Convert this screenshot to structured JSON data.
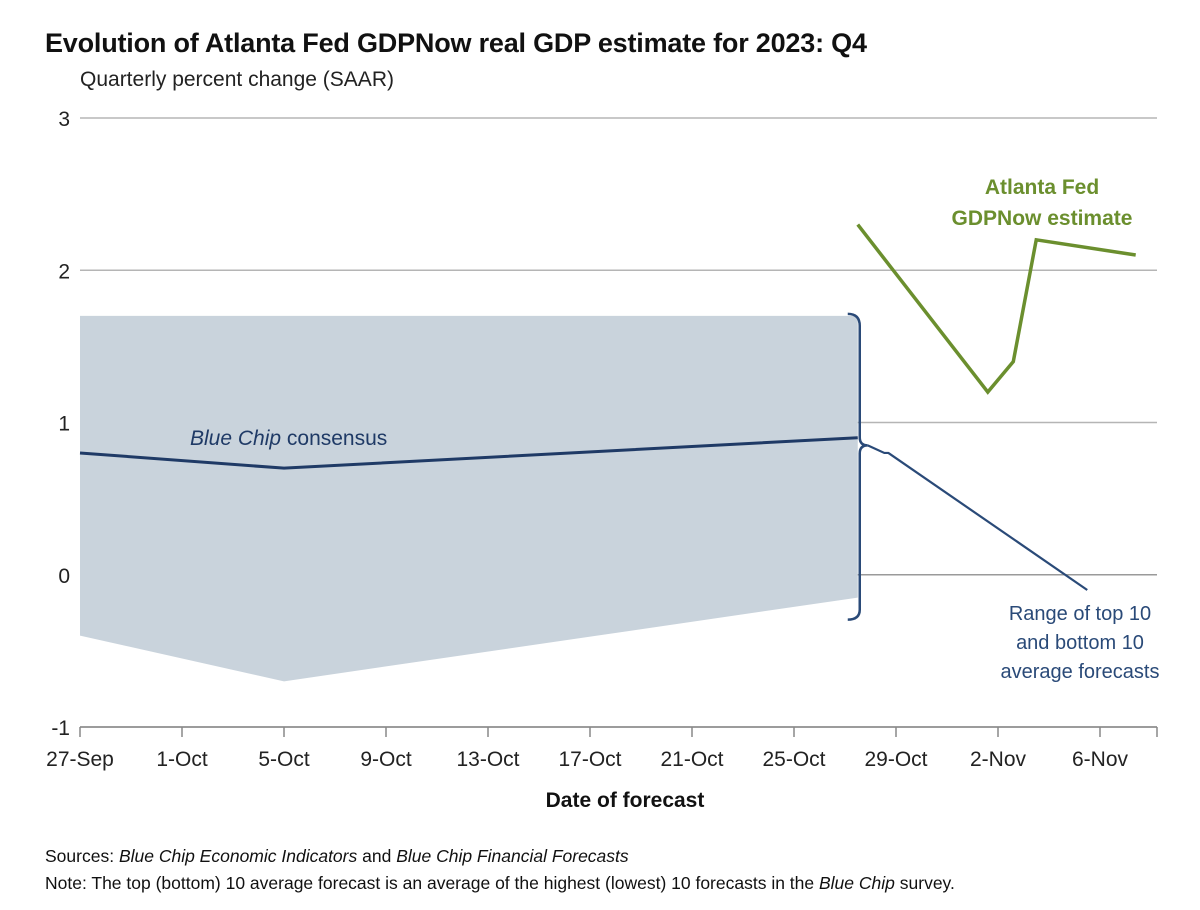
{
  "chart_data": {
    "type": "line",
    "title": "Evolution of Atlanta Fed GDPNow real GDP estimate for 2023: Q4",
    "subtitle": "Quarterly percent change (SAAR)",
    "xlabel": "Date of forecast",
    "ylabel": "",
    "ylim": [
      -1,
      3
    ],
    "yticks": [
      3,
      2,
      1,
      0,
      -1
    ],
    "x_day_range": [
      0,
      42
    ],
    "xticks": [
      {
        "label": "27-Sep",
        "day": 0
      },
      {
        "label": "1-Oct",
        "day": 4
      },
      {
        "label": "5-Oct",
        "day": 8
      },
      {
        "label": "9-Oct",
        "day": 12
      },
      {
        "label": "13-Oct",
        "day": 16
      },
      {
        "label": "17-Oct",
        "day": 20
      },
      {
        "label": "21-Oct",
        "day": 24
      },
      {
        "label": "25-Oct",
        "day": 28
      },
      {
        "label": "29-Oct",
        "day": 32
      },
      {
        "label": "2-Nov",
        "day": 36
      },
      {
        "label": "6-Nov",
        "day": 40
      }
    ],
    "grid": true,
    "series": [
      {
        "name": "Atlanta Fed GDPNow estimate",
        "color": "#6b8f2e",
        "points": [
          {
            "day": 30.5,
            "value": 2.3
          },
          {
            "day": 35.6,
            "value": 1.2
          },
          {
            "day": 36.6,
            "value": 1.4
          },
          {
            "day": 37.5,
            "value": 2.2
          },
          {
            "day": 41.4,
            "value": 2.1
          }
        ]
      },
      {
        "name": "Blue Chip consensus",
        "color": "#1f3a66",
        "points": [
          {
            "day": 0,
            "value": 0.8
          },
          {
            "day": 8,
            "value": 0.7
          },
          {
            "day": 30.5,
            "value": 0.9
          }
        ]
      },
      {
        "name": "Range of top 10 and bottom 10 average forecasts",
        "type": "area",
        "color": "#c9d3dc",
        "upper": [
          {
            "day": 0,
            "value": 1.7
          },
          {
            "day": 30.5,
            "value": 1.7
          }
        ],
        "lower": [
          {
            "day": 0,
            "value": -0.4
          },
          {
            "day": 8,
            "value": -0.7
          },
          {
            "day": 30.5,
            "value": -0.15
          }
        ]
      },
      {
        "name": "range-callout-line",
        "color": "#2a4a78",
        "points": [
          {
            "day": 31.7,
            "value": 0.8
          },
          {
            "day": 39.5,
            "value": -0.1
          }
        ]
      }
    ],
    "annotations": {
      "gdpnow_line1": "Atlanta Fed",
      "gdpnow_line2": "GDPNow estimate",
      "consensus_italic": "Blue Chip",
      "consensus_rest": " consensus",
      "range_line1": "Range of top 10",
      "range_line2": "and bottom 10",
      "range_line3": "average forecasts"
    }
  },
  "footer": {
    "sources_label": "Sources:",
    "sources_italic1": "Blue Chip Economic Indicators",
    "sources_and": " and ",
    "sources_italic2": "Blue Chip Financial Forecasts",
    "note_label": "Note",
    "note_text1": ": The top (bottom) 10 average forecast is an average of the highest (lowest) 10 forecasts in the ",
    "note_italic": "Blue Chip",
    "note_text2": " survey."
  }
}
